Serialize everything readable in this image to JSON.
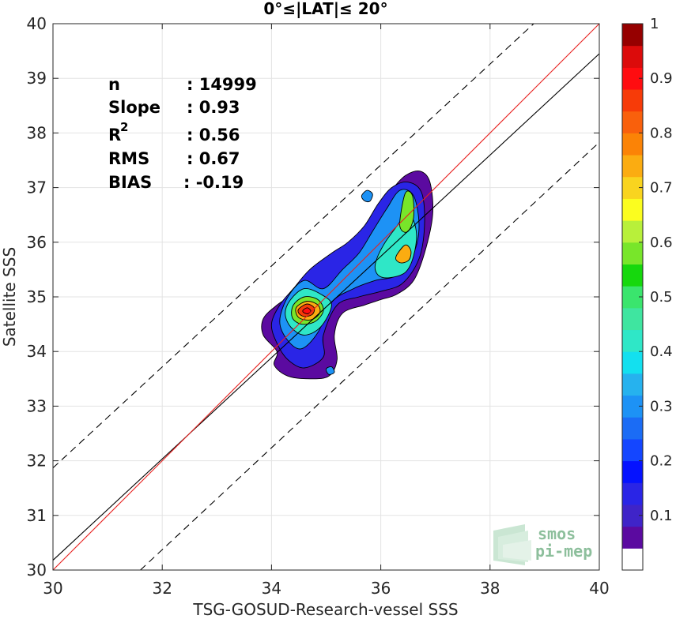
{
  "chart_data": {
    "type": "heatmap",
    "title": "0°≤|LAT|≤ 20°",
    "xlabel": "TSG-GOSUD-Research-vessel SSS",
    "ylabel": "Satellite SSS",
    "xlim": [
      30,
      40
    ],
    "ylim": [
      30,
      40
    ],
    "x_ticks": [
      30,
      32,
      34,
      36,
      38,
      40
    ],
    "y_ticks": [
      30,
      31,
      32,
      33,
      34,
      35,
      36,
      37,
      38,
      39,
      40
    ],
    "grid": true,
    "stats": {
      "n_label": "n",
      "n_value": ": 14999",
      "slope_label": "Slope",
      "slope_value": ": 0.93",
      "r2_label": "R",
      "r2_sup": "2",
      "r2_value": ": 0.56",
      "rms_label": "RMS",
      "rms_value": ": 0.67",
      "bias_label": "BIAS",
      "bias_value": ": -0.19"
    },
    "lines": {
      "identity": {
        "color": "#e8211f",
        "from": [
          30,
          30
        ],
        "to": [
          40,
          40
        ]
      },
      "regression": {
        "color": "#000000",
        "from": [
          30,
          30.18
        ],
        "to": [
          40,
          39.45
        ]
      },
      "upper_dashed": {
        "color": "#000000",
        "from": [
          30,
          31.87
        ],
        "to": [
          38.8,
          40
        ]
      },
      "lower_dashed": {
        "color": "#000000",
        "from": [
          31.6,
          30
        ],
        "to": [
          40,
          37.83
        ]
      }
    },
    "density_contours": [
      {
        "level": 0.05,
        "points": [
          [
            34.8,
            35.2
          ],
          [
            35.0,
            35.5
          ],
          [
            35.3,
            35.7
          ],
          [
            35.6,
            35.95
          ],
          [
            35.8,
            36.25
          ],
          [
            36.0,
            36.6
          ],
          [
            36.2,
            36.95
          ],
          [
            36.45,
            37.22
          ],
          [
            36.72,
            37.3
          ],
          [
            36.9,
            37.1
          ],
          [
            36.95,
            36.5
          ],
          [
            36.8,
            35.8
          ],
          [
            36.6,
            35.3
          ],
          [
            36.3,
            35.05
          ],
          [
            36.0,
            34.95
          ],
          [
            35.7,
            34.85
          ],
          [
            35.3,
            34.7
          ],
          [
            35.15,
            34.3
          ],
          [
            35.2,
            33.85
          ],
          [
            35.05,
            33.55
          ],
          [
            34.7,
            33.5
          ],
          [
            34.3,
            33.55
          ],
          [
            34.05,
            33.75
          ],
          [
            34.1,
            34.0
          ],
          [
            33.85,
            34.3
          ],
          [
            33.85,
            34.6
          ],
          [
            34.1,
            34.85
          ],
          [
            34.4,
            35.05
          ],
          [
            34.6,
            35.2
          ]
        ]
      },
      {
        "level": 0.15,
        "points": [
          [
            34.4,
            35.15
          ],
          [
            34.7,
            35.5
          ],
          [
            35.1,
            35.8
          ],
          [
            35.4,
            36.0
          ],
          [
            35.7,
            36.3
          ],
          [
            35.95,
            36.7
          ],
          [
            36.2,
            37.0
          ],
          [
            36.5,
            37.1
          ],
          [
            36.75,
            36.9
          ],
          [
            36.8,
            36.3
          ],
          [
            36.7,
            35.7
          ],
          [
            36.4,
            35.25
          ],
          [
            36.0,
            35.1
          ],
          [
            35.6,
            35.0
          ],
          [
            35.2,
            34.85
          ],
          [
            34.95,
            34.3
          ],
          [
            34.95,
            33.9
          ],
          [
            34.6,
            33.7
          ],
          [
            34.3,
            33.85
          ],
          [
            34.1,
            34.15
          ],
          [
            34.0,
            34.5
          ],
          [
            34.15,
            34.85
          ]
        ]
      },
      {
        "level": 0.3,
        "points": [
          [
            34.3,
            35.0
          ],
          [
            34.6,
            35.3
          ],
          [
            34.95,
            35.15
          ],
          [
            35.3,
            35.5
          ],
          [
            35.6,
            35.8
          ],
          [
            35.85,
            36.2
          ],
          [
            36.1,
            36.6
          ],
          [
            36.35,
            36.95
          ],
          [
            36.6,
            36.85
          ],
          [
            36.7,
            36.3
          ],
          [
            36.6,
            35.8
          ],
          [
            36.3,
            35.4
          ],
          [
            35.9,
            35.3
          ],
          [
            35.5,
            35.15
          ],
          [
            35.1,
            34.9
          ],
          [
            34.85,
            34.35
          ],
          [
            34.55,
            34.05
          ],
          [
            34.3,
            34.2
          ],
          [
            34.15,
            34.55
          ]
        ]
      },
      {
        "level": 0.45,
        "points": [
          [
            34.35,
            34.95
          ],
          [
            34.6,
            35.15
          ],
          [
            34.9,
            35.05
          ],
          [
            35.1,
            34.85
          ],
          [
            34.9,
            34.45
          ],
          [
            34.6,
            34.3
          ],
          [
            34.35,
            34.45
          ],
          [
            34.25,
            34.7
          ]
        ]
      },
      {
        "level": 0.45,
        "points": [
          [
            35.9,
            35.6
          ],
          [
            36.05,
            35.95
          ],
          [
            36.3,
            36.3
          ],
          [
            36.5,
            36.55
          ],
          [
            36.65,
            36.2
          ],
          [
            36.6,
            35.75
          ],
          [
            36.45,
            35.45
          ],
          [
            36.15,
            35.35
          ],
          [
            35.95,
            35.4
          ]
        ]
      },
      {
        "level": 0.6,
        "points": [
          [
            34.4,
            34.85
          ],
          [
            34.6,
            35.0
          ],
          [
            34.85,
            34.95
          ],
          [
            34.95,
            34.75
          ],
          [
            34.8,
            34.55
          ],
          [
            34.55,
            34.5
          ],
          [
            34.38,
            34.62
          ]
        ]
      },
      {
        "level": 0.6,
        "points": [
          [
            36.35,
            36.4
          ],
          [
            36.45,
            36.9
          ],
          [
            36.58,
            36.85
          ],
          [
            36.6,
            36.45
          ],
          [
            36.5,
            36.2
          ],
          [
            36.38,
            36.22
          ]
        ]
      },
      {
        "level": 0.75,
        "points": [
          [
            34.45,
            34.8
          ],
          [
            34.65,
            34.92
          ],
          [
            34.85,
            34.85
          ],
          [
            34.88,
            34.7
          ],
          [
            34.72,
            34.58
          ],
          [
            34.5,
            34.62
          ]
        ]
      },
      {
        "level": 0.75,
        "points": [
          [
            36.3,
            35.78
          ],
          [
            36.45,
            35.95
          ],
          [
            36.55,
            35.85
          ],
          [
            36.52,
            35.68
          ],
          [
            36.38,
            35.62
          ],
          [
            36.28,
            35.68
          ]
        ]
      },
      {
        "level": 0.9,
        "points": [
          [
            34.5,
            34.78
          ],
          [
            34.65,
            34.87
          ],
          [
            34.78,
            34.8
          ],
          [
            34.75,
            34.68
          ],
          [
            34.6,
            34.64
          ],
          [
            34.5,
            34.7
          ]
        ]
      },
      {
        "level": 0.95,
        "points": [
          [
            34.58,
            34.76
          ],
          [
            34.66,
            34.8
          ],
          [
            34.72,
            34.74
          ],
          [
            34.66,
            34.69
          ],
          [
            34.58,
            34.72
          ]
        ]
      },
      {
        "level": 0.3,
        "points": [
          [
            35.65,
            36.85
          ],
          [
            35.75,
            36.95
          ],
          [
            35.85,
            36.88
          ],
          [
            35.8,
            36.75
          ],
          [
            35.7,
            36.76
          ]
        ]
      },
      {
        "level": 0.3,
        "points": [
          [
            35.0,
            33.68
          ],
          [
            35.1,
            33.72
          ],
          [
            35.15,
            33.62
          ],
          [
            35.05,
            33.58
          ]
        ]
      }
    ],
    "colorbar": {
      "ticks": [
        0.1,
        0.2,
        0.3,
        0.4,
        0.5,
        0.6,
        0.7,
        0.8,
        0.9,
        1
      ],
      "tick_labels": [
        "0.1",
        "0.2",
        "0.3",
        "0.4",
        "0.5",
        "0.6",
        "0.7",
        "0.8",
        "0.9",
        "1"
      ],
      "range": [
        0,
        1
      ],
      "colors": [
        "#ffffff",
        "#5b0aa0",
        "#3f24c8",
        "#2a25e6",
        "#0512ff",
        "#1446ff",
        "#1b6cf5",
        "#1d92f5",
        "#26b2ee",
        "#13e0ef",
        "#2fe7c7",
        "#3fe5a0",
        "#3ae56d",
        "#16d80d",
        "#78e62a",
        "#b8f03a",
        "#fbfd1f",
        "#f9d41f",
        "#fbac11",
        "#fb8306",
        "#f9600c",
        "#f73b08",
        "#ff0c10",
        "#dc0b0b",
        "#960000"
      ]
    }
  },
  "logo": {
    "line1": "smos",
    "line2": "pi-mep"
  }
}
